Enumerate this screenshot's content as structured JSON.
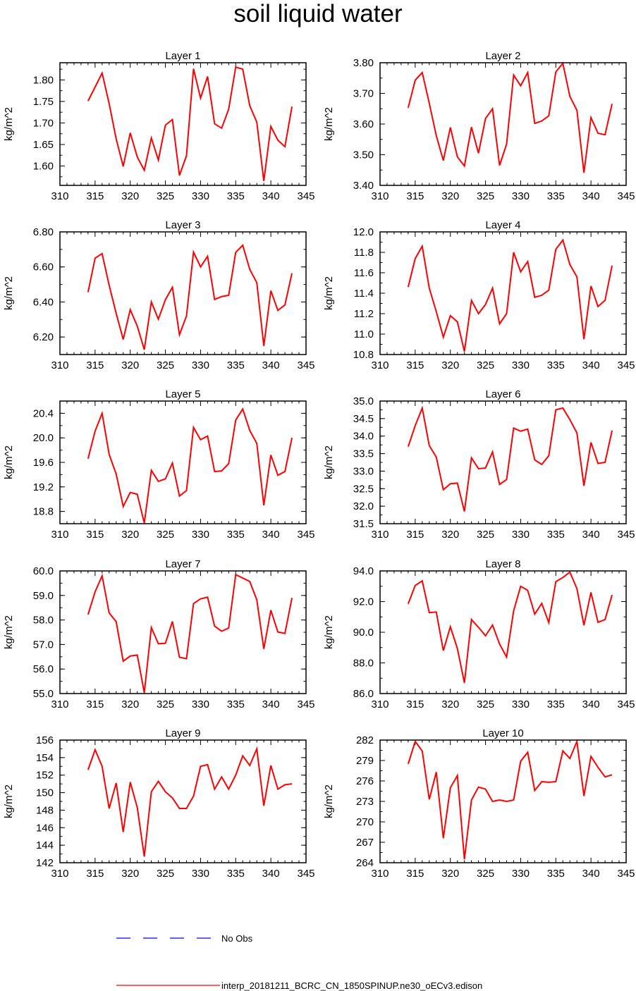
{
  "figure": {
    "title": "soil liquid water",
    "legend": [
      {
        "label": "No Obs",
        "color": "#0000ff",
        "style": "dashed"
      },
      {
        "label": "interp_20181211_BCRC_CN_1850SPINUP.ne30_oECv3.edison",
        "color": "#ff0000",
        "style": "solid"
      }
    ]
  },
  "chart_data": [
    {
      "type": "line",
      "title": "Layer 1",
      "ylabel": "kg/m^2",
      "xlim": [
        310,
        345
      ],
      "xticks": [
        "310",
        "315",
        "320",
        "325",
        "330",
        "335",
        "340",
        "345"
      ],
      "ylim": [
        1.555,
        1.84
      ],
      "yticks": [
        "1.60",
        "1.65",
        "1.70",
        "1.75",
        "1.80"
      ],
      "x": [
        314,
        316,
        317,
        318,
        319,
        320,
        321,
        322,
        323,
        324,
        325,
        326,
        327,
        328,
        329,
        330,
        331,
        332,
        333,
        334,
        335,
        336,
        337,
        338,
        339,
        340,
        341,
        342,
        343
      ],
      "series": [
        {
          "values": [
            1.751,
            1.816,
            1.745,
            1.663,
            1.599,
            1.677,
            1.621,
            1.59,
            1.665,
            1.614,
            1.695,
            1.708,
            1.578,
            1.624,
            1.826,
            1.758,
            1.808,
            1.698,
            1.688,
            1.732,
            1.83,
            1.825,
            1.74,
            1.702,
            1.565,
            1.692,
            1.66,
            1.645,
            1.738
          ]
        }
      ]
    },
    {
      "type": "line",
      "title": "Layer 2",
      "ylabel": "kg/m^2",
      "xlim": [
        310,
        345
      ],
      "xticks": [
        "310",
        "315",
        "320",
        "325",
        "330",
        "335",
        "340",
        "345"
      ],
      "ylim": [
        3.4,
        3.8
      ],
      "yticks": [
        "3.40",
        "3.50",
        "3.60",
        "3.70",
        "3.80"
      ],
      "x": [
        314,
        315,
        316,
        317,
        318,
        319,
        320,
        321,
        322,
        323,
        324,
        325,
        326,
        327,
        328,
        329,
        330,
        331,
        332,
        333,
        334,
        335,
        336,
        337,
        338,
        339,
        340,
        341,
        342,
        343
      ],
      "series": [
        {
          "values": [
            3.653,
            3.743,
            3.768,
            3.668,
            3.562,
            3.481,
            3.589,
            3.493,
            3.463,
            3.59,
            3.505,
            3.618,
            3.65,
            3.465,
            3.535,
            3.76,
            3.725,
            3.768,
            3.602,
            3.61,
            3.627,
            3.77,
            3.798,
            3.69,
            3.645,
            3.441,
            3.621,
            3.57,
            3.565,
            3.666
          ]
        }
      ]
    },
    {
      "type": "line",
      "title": "Layer 3",
      "ylabel": "kg/m^2",
      "xlim": [
        310,
        345
      ],
      "xticks": [
        "310",
        "315",
        "320",
        "325",
        "330",
        "335",
        "340",
        "345"
      ],
      "ylim": [
        6.1,
        6.8
      ],
      "yticks": [
        "6.20",
        "6.40",
        "6.60",
        "6.80"
      ],
      "x": [
        314,
        315,
        316,
        317,
        318,
        319,
        320,
        321,
        322,
        323,
        324,
        325,
        326,
        327,
        328,
        329,
        330,
        331,
        332,
        333,
        334,
        335,
        336,
        337,
        338,
        339,
        340,
        341,
        342,
        343
      ],
      "series": [
        {
          "values": [
            6.456,
            6.65,
            6.676,
            6.495,
            6.335,
            6.186,
            6.356,
            6.262,
            6.128,
            6.4,
            6.302,
            6.413,
            6.484,
            6.213,
            6.32,
            6.685,
            6.6,
            6.661,
            6.414,
            6.431,
            6.438,
            6.683,
            6.724,
            6.586,
            6.51,
            6.149,
            6.464,
            6.352,
            6.383,
            6.564
          ]
        }
      ]
    },
    {
      "type": "line",
      "title": "Layer 4",
      "ylabel": "kg/m^2",
      "xlim": [
        310,
        345
      ],
      "xticks": [
        "310",
        "315",
        "320",
        "325",
        "330",
        "335",
        "340",
        "345"
      ],
      "ylim": [
        10.8,
        12.0
      ],
      "yticks": [
        "10.8",
        "11.0",
        "11.2",
        "11.4",
        "11.6",
        "11.8",
        "12.0"
      ],
      "x": [
        314,
        315,
        316,
        317,
        318,
        319,
        320,
        321,
        322,
        323,
        324,
        325,
        326,
        327,
        328,
        329,
        330,
        331,
        332,
        333,
        334,
        335,
        336,
        337,
        338,
        339,
        340,
        341,
        342,
        343
      ],
      "series": [
        {
          "values": [
            11.46,
            11.74,
            11.86,
            11.45,
            11.22,
            10.97,
            11.18,
            11.12,
            10.83,
            11.33,
            11.2,
            11.29,
            11.45,
            11.1,
            11.2,
            11.8,
            11.61,
            11.71,
            11.36,
            11.38,
            11.43,
            11.83,
            11.92,
            11.68,
            11.56,
            10.95,
            11.47,
            11.27,
            11.33,
            11.67
          ]
        }
      ]
    },
    {
      "type": "line",
      "title": "Layer 5",
      "ylabel": "kg/m^2",
      "xlim": [
        310,
        345
      ],
      "xticks": [
        "310",
        "315",
        "320",
        "325",
        "330",
        "335",
        "340",
        "345"
      ],
      "ylim": [
        18.6,
        20.6
      ],
      "yticks": [
        "18.8",
        "19.2",
        "19.6",
        "20.0",
        "20.4"
      ],
      "x": [
        314,
        315,
        316,
        317,
        318,
        319,
        320,
        321,
        322,
        323,
        324,
        325,
        326,
        327,
        328,
        329,
        330,
        331,
        332,
        333,
        334,
        335,
        336,
        337,
        338,
        339,
        340,
        341,
        342,
        343
      ],
      "series": [
        {
          "values": [
            19.66,
            20.11,
            20.4,
            19.73,
            19.41,
            18.88,
            19.11,
            19.08,
            18.61,
            19.47,
            19.29,
            19.33,
            19.59,
            19.05,
            19.14,
            20.17,
            19.97,
            20.03,
            19.45,
            19.46,
            19.58,
            20.29,
            20.47,
            20.12,
            19.91,
            18.9,
            19.72,
            19.39,
            19.45,
            20.0
          ]
        }
      ]
    },
    {
      "type": "line",
      "title": "Layer 6",
      "ylabel": "kg/m^2",
      "xlim": [
        310,
        345
      ],
      "xticks": [
        "310",
        "315",
        "320",
        "325",
        "330",
        "335",
        "340",
        "345"
      ],
      "ylim": [
        31.5,
        35.0
      ],
      "yticks": [
        "31.5",
        "32.0",
        "32.5",
        "33.0",
        "33.5",
        "34.0",
        "34.5",
        "35.0"
      ],
      "x": [
        314,
        315,
        316,
        317,
        318,
        319,
        320,
        321,
        322,
        323,
        324,
        325,
        326,
        327,
        328,
        329,
        330,
        331,
        332,
        333,
        334,
        335,
        336,
        337,
        338,
        339,
        340,
        341,
        342,
        343
      ],
      "series": [
        {
          "values": [
            33.7,
            34.3,
            34.8,
            33.73,
            33.4,
            32.47,
            32.64,
            32.66,
            31.85,
            33.38,
            33.07,
            33.09,
            33.55,
            32.62,
            32.76,
            34.23,
            34.14,
            34.2,
            33.32,
            33.19,
            33.44,
            34.75,
            34.8,
            34.47,
            34.09,
            32.58,
            33.82,
            33.22,
            33.25,
            34.16
          ]
        }
      ]
    },
    {
      "type": "line",
      "title": "Layer 7",
      "ylabel": "kg/m^2",
      "xlim": [
        310,
        345
      ],
      "xticks": [
        "310",
        "315",
        "320",
        "325",
        "330",
        "335",
        "340",
        "345"
      ],
      "ylim": [
        55.0,
        60.0
      ],
      "yticks": [
        "55.0",
        "56.0",
        "57.0",
        "58.0",
        "59.0",
        "60.0"
      ],
      "x": [
        314,
        315,
        316,
        317,
        318,
        319,
        320,
        321,
        322,
        323,
        324,
        325,
        326,
        327,
        328,
        329,
        330,
        331,
        332,
        333,
        334,
        335,
        337,
        338,
        339,
        340,
        341,
        342,
        343
      ],
      "series": [
        {
          "values": [
            58.22,
            59.15,
            59.8,
            58.29,
            57.93,
            56.32,
            56.53,
            56.57,
            55.03,
            57.69,
            57.03,
            57.05,
            57.94,
            56.48,
            56.42,
            58.67,
            58.86,
            58.93,
            57.75,
            57.54,
            57.67,
            59.85,
            59.57,
            58.82,
            56.82,
            58.4,
            57.51,
            57.45,
            58.9
          ]
        }
      ]
    },
    {
      "type": "line",
      "title": "Layer 8",
      "ylabel": "kg/m^2",
      "xlim": [
        310,
        345
      ],
      "xticks": [
        "310",
        "315",
        "320",
        "325",
        "330",
        "335",
        "340",
        "345"
      ],
      "ylim": [
        86.0,
        94.0
      ],
      "yticks": [
        "86.0",
        "88.0",
        "90.0",
        "92.0",
        "94.0"
      ],
      "x": [
        314,
        315,
        316,
        317,
        318,
        319,
        320,
        321,
        322,
        323,
        324,
        325,
        326,
        327,
        328,
        329,
        330,
        331,
        332,
        333,
        334,
        335,
        336,
        337,
        338,
        339,
        340,
        341,
        342,
        343
      ],
      "series": [
        {
          "values": [
            91.85,
            93.05,
            93.35,
            91.28,
            91.32,
            88.8,
            90.36,
            88.93,
            86.7,
            90.83,
            90.32,
            89.77,
            90.47,
            89.23,
            88.38,
            91.4,
            93.0,
            92.73,
            91.18,
            91.88,
            90.63,
            93.3,
            93.57,
            93.92,
            92.85,
            90.45,
            92.6,
            90.65,
            90.82,
            92.43
          ]
        }
      ]
    },
    {
      "type": "line",
      "title": "Layer 9",
      "ylabel": "kg/m^2",
      "xlim": [
        310,
        345
      ],
      "xticks": [
        "310",
        "315",
        "320",
        "325",
        "330",
        "335",
        "340",
        "345"
      ],
      "ylim": [
        142,
        156
      ],
      "yticks": [
        "142",
        "144",
        "146",
        "148",
        "150",
        "152",
        "154",
        "156"
      ],
      "x": [
        314,
        315,
        316,
        317,
        318,
        319,
        320,
        321,
        322,
        323,
        324,
        325,
        326,
        327,
        328,
        329,
        330,
        331,
        332,
        333,
        334,
        335,
        336,
        337,
        338,
        339,
        340,
        341,
        342,
        343
      ],
      "series": [
        {
          "values": [
            152.6,
            154.9,
            153.0,
            148.2,
            151.1,
            145.5,
            151.2,
            148.3,
            142.7,
            150.1,
            151.3,
            150.1,
            149.4,
            148.2,
            148.2,
            149.6,
            153.0,
            153.2,
            150.4,
            151.8,
            150.4,
            152.0,
            154.2,
            153.1,
            155.0,
            148.5,
            153.1,
            150.4,
            150.9,
            151.0
          ]
        }
      ]
    },
    {
      "type": "line",
      "title": "Layer 10",
      "ylabel": "kg/m^2",
      "xlim": [
        310,
        345
      ],
      "xticks": [
        "310",
        "315",
        "320",
        "325",
        "330",
        "335",
        "340",
        "345"
      ],
      "ylim": [
        264,
        282
      ],
      "yticks": [
        "264",
        "267",
        "270",
        "273",
        "276",
        "279",
        "282"
      ],
      "x": [
        314,
        315,
        316,
        317,
        318,
        319,
        320,
        321,
        322,
        323,
        324,
        325,
        326,
        327,
        328,
        329,
        330,
        331,
        332,
        333,
        334,
        335,
        336,
        337,
        338,
        339,
        340,
        341,
        342,
        343
      ],
      "series": [
        {
          "values": [
            278.5,
            281.8,
            280.4,
            273.3,
            277.3,
            267.6,
            275.0,
            276.8,
            264.5,
            273.2,
            275.1,
            274.8,
            273.0,
            273.2,
            273.0,
            273.2,
            278.9,
            280.2,
            274.6,
            275.9,
            275.8,
            275.9,
            280.4,
            279.3,
            281.8,
            273.8,
            279.6,
            278.0,
            276.6,
            276.9
          ]
        }
      ]
    }
  ]
}
